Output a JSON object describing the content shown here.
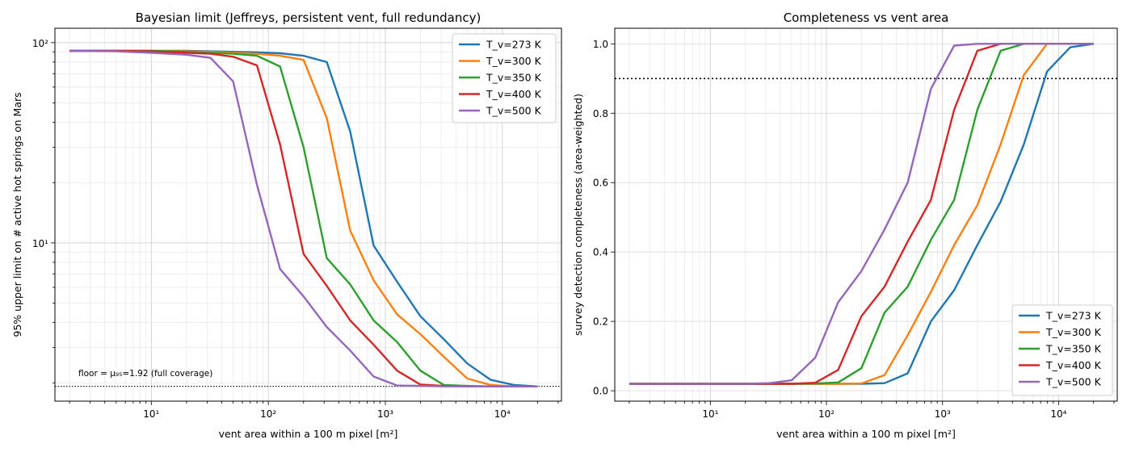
{
  "chart_data": [
    {
      "type": "line",
      "title": "Bayesian limit (Jeffreys, persistent vent, full redundancy)",
      "xlabel": "vent area within a 100 m pixel [m²]",
      "ylabel": "95% upper limit on # active hot springs on Mars",
      "xscale": "log",
      "yscale": "log",
      "xlim": [
        1.5,
        32000
      ],
      "ylim": [
        1.62,
        118
      ],
      "xticks": [
        "10¹",
        "10²",
        "10³",
        "10⁴"
      ],
      "yticks": [
        "10¹",
        "10²"
      ],
      "grid": true,
      "legend_position": "upper right",
      "annotation": "floor = μ₉₅=1.92 (full coverage)",
      "hline": 1.92,
      "x": [
        2,
        5,
        10,
        20,
        32,
        50,
        80,
        126,
        200,
        316,
        501,
        794,
        1259,
        1995,
        3162,
        5012,
        7943,
        12589,
        20000
      ],
      "series": [
        {
          "name": "T_v=273 K",
          "color": "#1f77b4",
          "values": [
            91,
            91,
            91,
            91,
            90.5,
            90,
            89.5,
            88.5,
            86,
            80,
            36,
            9.7,
            6.4,
            4.3,
            3.3,
            2.5,
            2.07,
            1.95,
            1.92
          ]
        },
        {
          "name": "T_v=300 K",
          "color": "#ff7f0e",
          "values": [
            91,
            91,
            91,
            90.5,
            90,
            89,
            88,
            86,
            82,
            42,
            11.5,
            6.5,
            4.4,
            3.5,
            2.7,
            2.1,
            1.95,
            1.92,
            1.92
          ]
        },
        {
          "name": "T_v=350 K",
          "color": "#2ca02c",
          "values": [
            91,
            91,
            91,
            90,
            89,
            88,
            86,
            76,
            30,
            8.4,
            6.2,
            4.1,
            3.2,
            2.3,
            1.95,
            1.93,
            1.92,
            1.92,
            1.92
          ]
        },
        {
          "name": "T_v=400 K",
          "color": "#d62728",
          "values": [
            91,
            91,
            90.5,
            89,
            88,
            85,
            77,
            31,
            8.8,
            6.1,
            4.1,
            3.1,
            2.3,
            1.96,
            1.93,
            1.92,
            1.92,
            1.92,
            1.92
          ]
        },
        {
          "name": "T_v=500 K",
          "color": "#9467bd",
          "values": [
            91,
            90.5,
            89,
            87,
            84,
            64,
            19.5,
            7.4,
            5.4,
            3.8,
            2.9,
            2.15,
            1.94,
            1.93,
            1.92,
            1.92,
            1.92,
            1.92,
            1.92
          ]
        }
      ]
    },
    {
      "type": "line",
      "title": "Completeness vs vent area",
      "xlabel": "vent area within a 100 m pixel [m²]",
      "ylabel": "survey detection completeness (area-weighted)",
      "xscale": "log",
      "yscale": "linear",
      "xlim": [
        1.5,
        32000
      ],
      "ylim": [
        -0.03,
        1.045
      ],
      "xticks": [
        "10¹",
        "10²",
        "10³",
        "10⁴"
      ],
      "yticks": [
        "0.0",
        "0.2",
        "0.4",
        "0.6",
        "0.8",
        "1.0"
      ],
      "grid": true,
      "legend_position": "lower right",
      "hline": 0.9,
      "x": [
        2,
        5,
        10,
        20,
        32,
        50,
        80,
        126,
        200,
        316,
        501,
        794,
        1259,
        1995,
        3162,
        5012,
        7943,
        12589,
        20000
      ],
      "series": [
        {
          "name": "T_v=273 K",
          "color": "#1f77b4",
          "values": [
            0.02,
            0.02,
            0.02,
            0.02,
            0.02,
            0.02,
            0.02,
            0.02,
            0.02,
            0.022,
            0.05,
            0.2,
            0.29,
            0.42,
            0.545,
            0.71,
            0.92,
            0.99,
            1.0
          ]
        },
        {
          "name": "T_v=300 K",
          "color": "#ff7f0e",
          "values": [
            0.02,
            0.02,
            0.02,
            0.02,
            0.02,
            0.02,
            0.02,
            0.02,
            0.021,
            0.045,
            0.16,
            0.285,
            0.42,
            0.535,
            0.71,
            0.91,
            1.0,
            1.0,
            1.0
          ]
        },
        {
          "name": "T_v=350 K",
          "color": "#2ca02c",
          "values": [
            0.02,
            0.02,
            0.02,
            0.02,
            0.02,
            0.02,
            0.021,
            0.024,
            0.065,
            0.225,
            0.3,
            0.435,
            0.55,
            0.81,
            0.98,
            1.0,
            1.0,
            1.0,
            1.0
          ]
        },
        {
          "name": "T_v=400 K",
          "color": "#d62728",
          "values": [
            0.02,
            0.02,
            0.02,
            0.02,
            0.02,
            0.02,
            0.023,
            0.06,
            0.215,
            0.3,
            0.43,
            0.55,
            0.81,
            0.98,
            1.0,
            1.0,
            1.0,
            1.0,
            1.0
          ]
        },
        {
          "name": "T_v=500 K",
          "color": "#9467bd",
          "values": [
            0.02,
            0.02,
            0.02,
            0.02,
            0.022,
            0.03,
            0.095,
            0.255,
            0.345,
            0.465,
            0.6,
            0.87,
            0.995,
            1.0,
            1.0,
            1.0,
            1.0,
            1.0,
            1.0
          ]
        }
      ]
    }
  ]
}
